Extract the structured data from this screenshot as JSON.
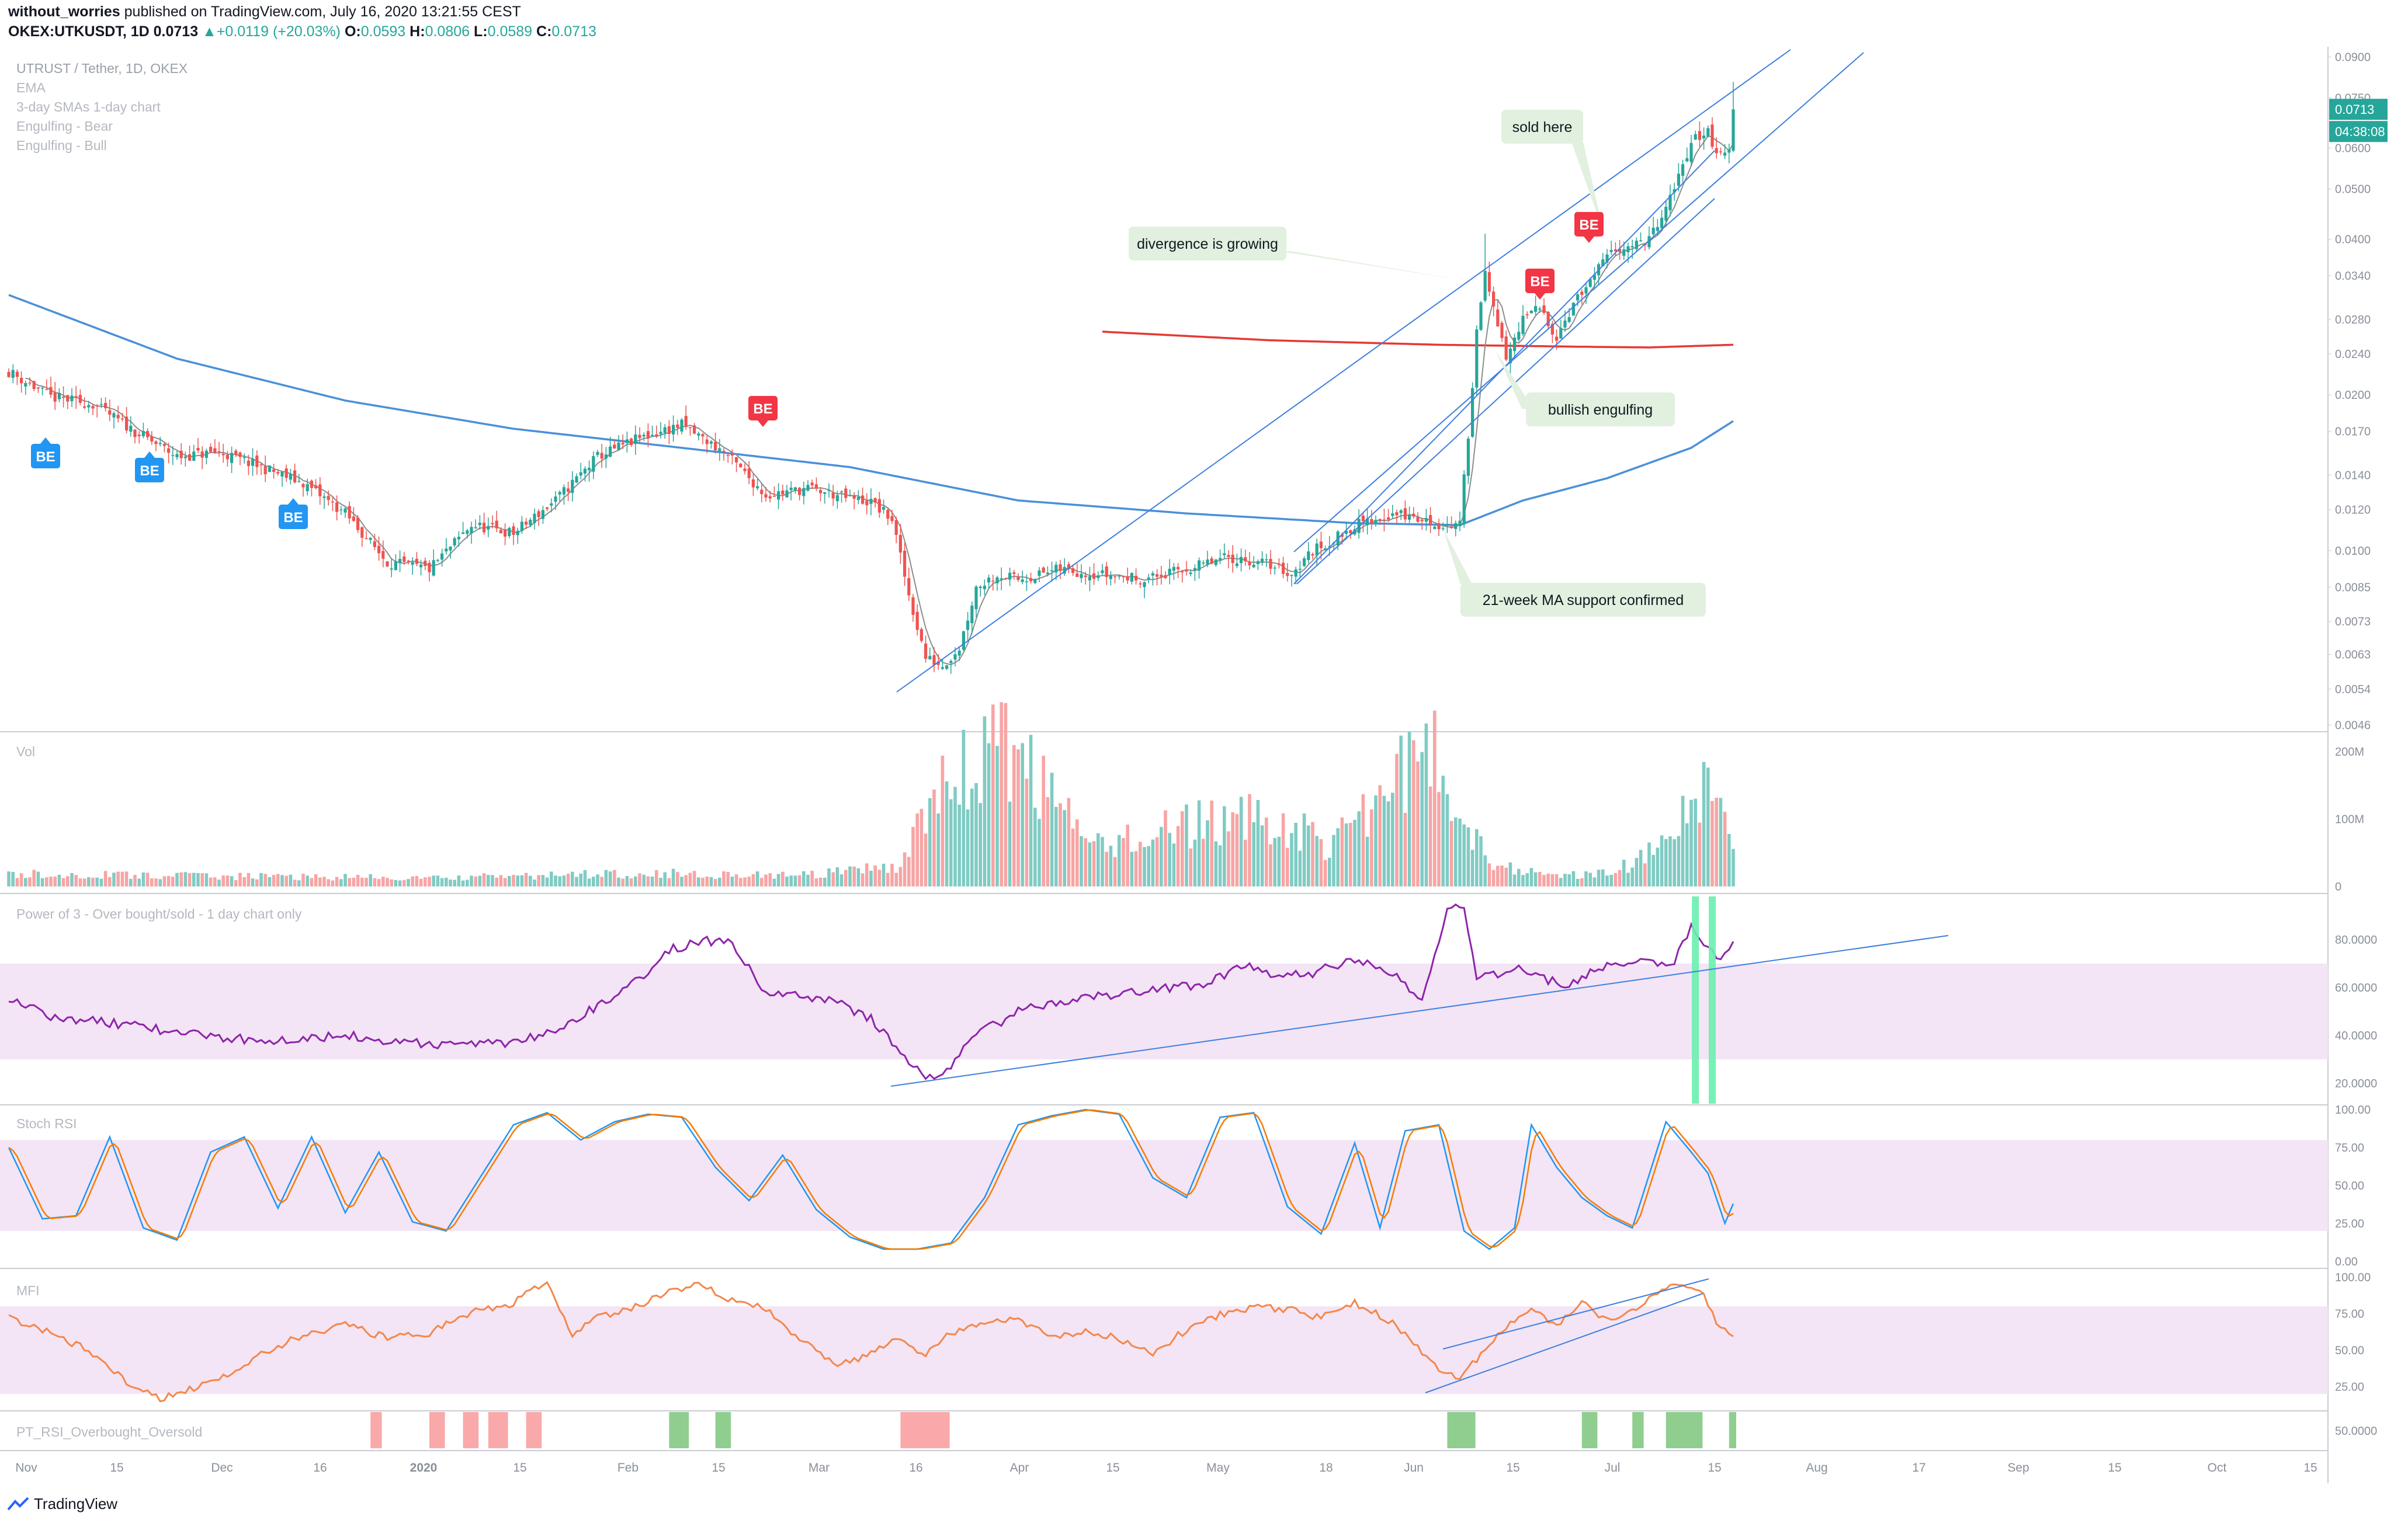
{
  "header": {
    "author": "without_worries",
    "published": "published on TradingView.com, July 16, 2020 13:21:55 CEST",
    "symbol": "OKEX:UTKUSDT, 1D",
    "last": "0.0713",
    "change": "+0.0119 (+20.03%)",
    "o_label": "O:",
    "o": "0.0593",
    "h_label": "H:",
    "h": "0.0806",
    "l_label": "L:",
    "l": "0.0589",
    "c_label": "C:",
    "c": "0.0713",
    "up_arrow": "▲"
  },
  "legend": [
    "UTRUST / Tether, 1D, OKEX",
    "EMA",
    "3-day SMAs 1-day chart",
    "Engulfing - Bear",
    "Engulfing - Bull"
  ],
  "colors": {
    "up": "#26a69a",
    "down": "#ef5350",
    "vol_up": "#80cbc4",
    "vol_down": "#f7a5a5",
    "ma_blue": "#4a90d9",
    "ma_red": "#e53935",
    "sma_grey": "#8d8d8d",
    "trend": "#3f7fe0",
    "purple": "#8e24aa",
    "stoch_k": "#2196f3",
    "stoch_d": "#f57c00",
    "mfi": "#f4874b",
    "band": "#f3e5f5",
    "label_bg": "#e2f0df"
  },
  "annotations": [
    {
      "text": "sold here"
    },
    {
      "text": "divergence is growing"
    },
    {
      "text": "bullish engulfing"
    },
    {
      "text": "21-week MA support confirmed"
    }
  ],
  "badges": {
    "bear": "BE",
    "bull": "BE"
  },
  "price_badges": {
    "last": "0.0713",
    "countdown": "04:38:08"
  },
  "panes": {
    "vol": "Vol",
    "power": "Power of 3 - Over bought/sold - 1 day chart only",
    "stoch": "Stoch RSI",
    "mfi": "MFI",
    "pt": "PT_RSI_Overbought_Oversold"
  },
  "footer": {
    "brand": "TradingView"
  },
  "chart_data": {
    "type": "candlestick",
    "title": "UTRUST / Tether, 1D, OKEX",
    "y_scale": "log",
    "price_ticks": [
      "0.0900",
      "0.0750",
      "0.0600",
      "0.0500",
      "0.0400",
      "0.0340",
      "0.0280",
      "0.0240",
      "0.0200",
      "0.0170",
      "0.0140",
      "0.0120",
      "0.0100",
      "0.0085",
      "0.0073",
      "0.0063",
      "0.0054",
      "0.0046"
    ],
    "x_ticks": [
      "Nov",
      "15",
      "Dec",
      "16",
      "2020",
      "15",
      "Feb",
      "15",
      "Mar",
      "16",
      "Apr",
      "15",
      "May",
      "18",
      "Jun",
      "15",
      "Jul",
      "15",
      "Aug",
      "17",
      "Sep",
      "15",
      "Oct",
      "15"
    ],
    "vol_ticks": [
      "200M",
      "100M",
      "0"
    ],
    "power_ticks": [
      "80.0000",
      "60.0000",
      "40.0000",
      "20.0000"
    ],
    "stoch_ticks": [
      "100.00",
      "75.00",
      "50.00",
      "25.00",
      "0.00"
    ],
    "mfi_ticks": [
      "100.00",
      "75.00",
      "50.00",
      "25.00"
    ],
    "pt_ticks": [
      "50.0000"
    ],
    "close_key": [
      [
        0,
        0.0222
      ],
      [
        10,
        0.0198
      ],
      [
        20,
        0.0192
      ],
      [
        30,
        0.017
      ],
      [
        40,
        0.0152
      ],
      [
        50,
        0.0155
      ],
      [
        60,
        0.0145
      ],
      [
        70,
        0.0135
      ],
      [
        80,
        0.0118
      ],
      [
        90,
        0.0095
      ],
      [
        100,
        0.0092
      ],
      [
        110,
        0.0112
      ],
      [
        120,
        0.0108
      ],
      [
        130,
        0.0125
      ],
      [
        140,
        0.0152
      ],
      [
        150,
        0.0165
      ],
      [
        160,
        0.0175
      ],
      [
        170,
        0.0155
      ],
      [
        180,
        0.0128
      ],
      [
        190,
        0.0132
      ],
      [
        200,
        0.0126
      ],
      [
        205,
        0.0124
      ],
      [
        210,
        0.0115
      ],
      [
        214,
        0.0082
      ],
      [
        218,
        0.0062
      ],
      [
        222,
        0.006
      ],
      [
        226,
        0.0065
      ],
      [
        230,
        0.0085
      ],
      [
        235,
        0.009
      ],
      [
        240,
        0.0088
      ],
      [
        245,
        0.009
      ],
      [
        250,
        0.0092
      ],
      [
        260,
        0.009
      ],
      [
        270,
        0.0088
      ],
      [
        280,
        0.0092
      ],
      [
        290,
        0.0097
      ],
      [
        300,
        0.0094
      ],
      [
        305,
        0.009
      ],
      [
        310,
        0.01
      ],
      [
        315,
        0.0105
      ],
      [
        320,
        0.0112
      ],
      [
        325,
        0.0115
      ],
      [
        330,
        0.0118
      ],
      [
        340,
        0.0112
      ],
      [
        345,
        0.0112
      ],
      [
        347,
        0.0168
      ],
      [
        349,
        0.0265
      ],
      [
        351,
        0.0355
      ],
      [
        353,
        0.029
      ],
      [
        356,
        0.0235
      ],
      [
        360,
        0.028
      ],
      [
        364,
        0.0295
      ],
      [
        368,
        0.026
      ],
      [
        372,
        0.03
      ],
      [
        376,
        0.033
      ],
      [
        380,
        0.037
      ],
      [
        384,
        0.039
      ],
      [
        388,
        0.039
      ],
      [
        392,
        0.042
      ],
      [
        396,
        0.05
      ],
      [
        400,
        0.062
      ],
      [
        404,
        0.065
      ],
      [
        406,
        0.058
      ],
      [
        409,
        0.0593
      ],
      [
        410,
        0.0713
      ]
    ],
    "vol_key": [
      [
        0,
        18
      ],
      [
        60,
        15
      ],
      [
        100,
        12
      ],
      [
        150,
        20
      ],
      [
        190,
        16
      ],
      [
        212,
        30
      ],
      [
        216,
        110
      ],
      [
        226,
        160
      ],
      [
        230,
        190
      ],
      [
        240,
        200
      ],
      [
        247,
        140
      ],
      [
        256,
        60
      ],
      [
        270,
        75
      ],
      [
        285,
        95
      ],
      [
        300,
        100
      ],
      [
        315,
        60
      ],
      [
        325,
        130
      ],
      [
        332,
        175
      ],
      [
        337,
        215
      ],
      [
        342,
        150
      ],
      [
        347,
        95
      ],
      [
        352,
        40
      ],
      [
        365,
        15
      ],
      [
        380,
        20
      ],
      [
        395,
        60
      ],
      [
        400,
        120
      ],
      [
        404,
        160
      ],
      [
        407,
        100
      ],
      [
        410,
        75
      ]
    ],
    "power_key": [
      [
        0,
        56
      ],
      [
        10,
        48
      ],
      [
        30,
        44
      ],
      [
        45,
        40
      ],
      [
        60,
        38
      ],
      [
        80,
        40
      ],
      [
        100,
        36
      ],
      [
        118,
        37
      ],
      [
        130,
        42
      ],
      [
        140,
        52
      ],
      [
        150,
        64
      ],
      [
        158,
        76
      ],
      [
        165,
        80
      ],
      [
        172,
        78
      ],
      [
        180,
        58
      ],
      [
        195,
        55
      ],
      [
        205,
        47
      ],
      [
        212,
        33
      ],
      [
        217,
        24
      ],
      [
        222,
        22
      ],
      [
        228,
        38
      ],
      [
        240,
        50
      ],
      [
        255,
        56
      ],
      [
        270,
        58
      ],
      [
        285,
        62
      ],
      [
        295,
        70
      ],
      [
        300,
        65
      ],
      [
        310,
        66
      ],
      [
        320,
        72
      ],
      [
        330,
        64
      ],
      [
        336,
        56
      ],
      [
        342,
        92
      ],
      [
        346,
        94
      ],
      [
        349,
        64
      ],
      [
        360,
        68
      ],
      [
        370,
        60
      ],
      [
        380,
        70
      ],
      [
        390,
        72
      ],
      [
        395,
        68
      ],
      [
        400,
        86
      ],
      [
        404,
        76
      ],
      [
        407,
        70
      ],
      [
        410,
        78
      ]
    ],
    "stoch_k_key": [
      [
        0,
        75
      ],
      [
        8,
        28
      ],
      [
        16,
        30
      ],
      [
        24,
        82
      ],
      [
        32,
        22
      ],
      [
        40,
        14
      ],
      [
        48,
        72
      ],
      [
        56,
        82
      ],
      [
        64,
        35
      ],
      [
        72,
        82
      ],
      [
        80,
        32
      ],
      [
        88,
        72
      ],
      [
        96,
        26
      ],
      [
        104,
        20
      ],
      [
        112,
        55
      ],
      [
        120,
        90
      ],
      [
        128,
        98
      ],
      [
        136,
        80
      ],
      [
        144,
        92
      ],
      [
        152,
        97
      ],
      [
        160,
        95
      ],
      [
        168,
        62
      ],
      [
        176,
        40
      ],
      [
        184,
        70
      ],
      [
        192,
        34
      ],
      [
        200,
        16
      ],
      [
        208,
        8
      ],
      [
        216,
        8
      ],
      [
        224,
        12
      ],
      [
        232,
        42
      ],
      [
        240,
        90
      ],
      [
        248,
        96
      ],
      [
        256,
        100
      ],
      [
        264,
        97
      ],
      [
        272,
        55
      ],
      [
        280,
        42
      ],
      [
        288,
        95
      ],
      [
        296,
        98
      ],
      [
        304,
        36
      ],
      [
        312,
        18
      ],
      [
        320,
        78
      ],
      [
        326,
        22
      ],
      [
        332,
        86
      ],
      [
        340,
        90
      ],
      [
        346,
        20
      ],
      [
        352,
        8
      ],
      [
        358,
        22
      ],
      [
        362,
        90
      ],
      [
        368,
        62
      ],
      [
        374,
        42
      ],
      [
        380,
        30
      ],
      [
        386,
        22
      ],
      [
        394,
        92
      ],
      [
        400,
        72
      ],
      [
        404,
        58
      ],
      [
        408,
        25
      ],
      [
        410,
        38
      ]
    ],
    "mfi_key": [
      [
        0,
        72
      ],
      [
        10,
        62
      ],
      [
        20,
        48
      ],
      [
        28,
        28
      ],
      [
        36,
        16
      ],
      [
        44,
        24
      ],
      [
        52,
        32
      ],
      [
        60,
        48
      ],
      [
        70,
        60
      ],
      [
        80,
        68
      ],
      [
        90,
        58
      ],
      [
        100,
        62
      ],
      [
        110,
        76
      ],
      [
        120,
        82
      ],
      [
        128,
        98
      ],
      [
        134,
        60
      ],
      [
        140,
        72
      ],
      [
        148,
        78
      ],
      [
        156,
        90
      ],
      [
        164,
        95
      ],
      [
        172,
        84
      ],
      [
        180,
        78
      ],
      [
        188,
        58
      ],
      [
        196,
        40
      ],
      [
        204,
        46
      ],
      [
        212,
        58
      ],
      [
        218,
        46
      ],
      [
        224,
        62
      ],
      [
        232,
        70
      ],
      [
        240,
        72
      ],
      [
        248,
        58
      ],
      [
        256,
        64
      ],
      [
        264,
        58
      ],
      [
        272,
        48
      ],
      [
        280,
        64
      ],
      [
        288,
        74
      ],
      [
        296,
        80
      ],
      [
        304,
        78
      ],
      [
        312,
        72
      ],
      [
        320,
        82
      ],
      [
        326,
        74
      ],
      [
        332,
        62
      ],
      [
        338,
        42
      ],
      [
        344,
        30
      ],
      [
        350,
        46
      ],
      [
        356,
        66
      ],
      [
        362,
        78
      ],
      [
        368,
        66
      ],
      [
        374,
        82
      ],
      [
        380,
        70
      ],
      [
        386,
        78
      ],
      [
        392,
        90
      ],
      [
        398,
        96
      ],
      [
        402,
        92
      ],
      [
        406,
        70
      ],
      [
        410,
        60
      ]
    ],
    "sma21w_key": [
      [
        0,
        0.0312
      ],
      [
        40,
        0.0235
      ],
      [
        80,
        0.0195
      ],
      [
        120,
        0.0172
      ],
      [
        160,
        0.0158
      ],
      [
        200,
        0.0145
      ],
      [
        240,
        0.0125
      ],
      [
        280,
        0.0118
      ],
      [
        320,
        0.0113
      ],
      [
        345,
        0.0112
      ],
      [
        360,
        0.0125
      ],
      [
        380,
        0.0138
      ],
      [
        400,
        0.0158
      ],
      [
        410,
        0.0178
      ]
    ],
    "red_ma_key": [
      [
        260,
        0.0265
      ],
      [
        300,
        0.0255
      ],
      [
        340,
        0.025
      ],
      [
        370,
        0.0248
      ],
      [
        390,
        0.0247
      ],
      [
        410,
        0.025
      ]
    ],
    "pt_red_ranges": [
      [
        86,
        88
      ],
      [
        100,
        103
      ],
      [
        108,
        111
      ],
      [
        114,
        118
      ],
      [
        123,
        126
      ],
      [
        212,
        223
      ]
    ],
    "pt_green_ranges": [
      [
        157,
        161
      ],
      [
        168,
        171
      ],
      [
        342,
        348
      ],
      [
        374,
        377
      ],
      [
        386,
        388
      ],
      [
        394,
        402
      ],
      [
        409,
        410
      ]
    ]
  }
}
